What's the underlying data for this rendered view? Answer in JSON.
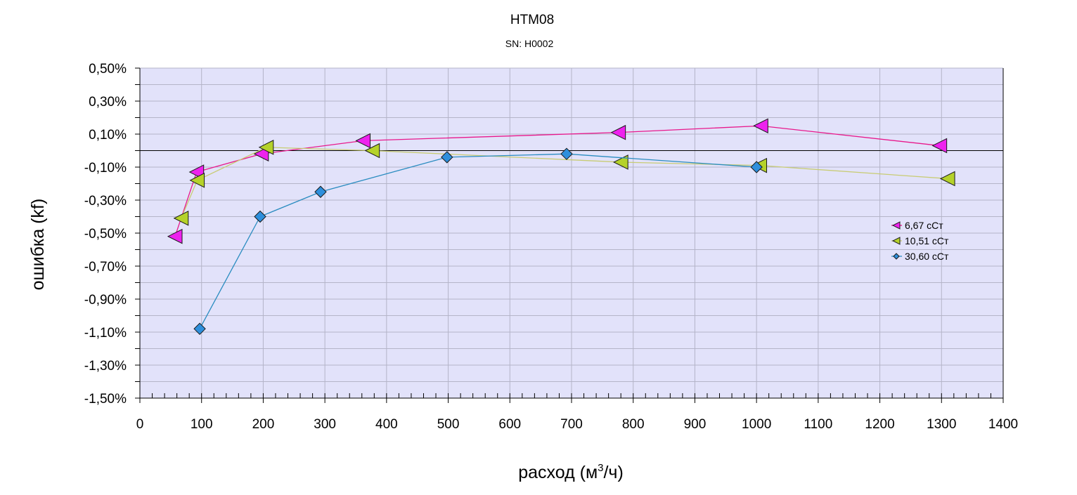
{
  "chart_data": {
    "type": "line",
    "title": "HTM08",
    "subtitle": "SN: H0002",
    "xlabel": "расход (м³/ч)",
    "xlabel_base": "расход (м",
    "xlabel_sup": "3",
    "xlabel_tail": "/ч)",
    "ylabel": "ошибка (kf)",
    "xlim": [
      0,
      1400
    ],
    "ylim": [
      -1.5,
      0.5
    ],
    "x_ticks": [
      "0",
      "100",
      "200",
      "300",
      "400",
      "500",
      "600",
      "700",
      "800",
      "900",
      "1000",
      "1100",
      "1200",
      "1300",
      "1400"
    ],
    "y_ticks": [
      "0,50%",
      "0,30%",
      "0,10%",
      "-0,10%",
      "-0,30%",
      "-0,50%",
      "-0,70%",
      "-0,90%",
      "-1,10%",
      "-1,30%",
      "-1,50%"
    ],
    "y_tick_values": [
      0.5,
      0.3,
      0.1,
      -0.1,
      -0.3,
      -0.5,
      -0.7,
      -0.9,
      -1.1,
      -1.3,
      -1.5
    ],
    "grid": true,
    "zero_line": true,
    "plot_background": "#e2e2fa",
    "legend_position": "right",
    "series": [
      {
        "name": "6,67 сСт",
        "color": "#e8188c",
        "marker_fill": "#ee22ee",
        "marker": "triangle-left",
        "x": [
          57,
          92,
          197,
          362,
          776,
          1007,
          1297
        ],
        "y": [
          -0.52,
          -0.13,
          -0.02,
          0.06,
          0.11,
          0.15,
          0.03
        ]
      },
      {
        "name": "10,51 сСт",
        "color": "#c8cc74",
        "marker_fill": "#b5d22a",
        "marker": "triangle-left",
        "x": [
          67,
          93,
          205,
          377,
          780,
          1005,
          1310
        ],
        "y": [
          -0.41,
          -0.18,
          0.02,
          0.0,
          -0.07,
          -0.09,
          -0.17
        ]
      },
      {
        "name": "30,60 сСт",
        "color": "#2a8cc0",
        "marker_fill": "#2e8fdc",
        "marker": "diamond",
        "x": [
          97,
          195,
          293,
          498,
          692,
          1000
        ],
        "y": [
          -1.08,
          -0.4,
          -0.25,
          -0.04,
          -0.02,
          -0.1
        ]
      }
    ]
  }
}
